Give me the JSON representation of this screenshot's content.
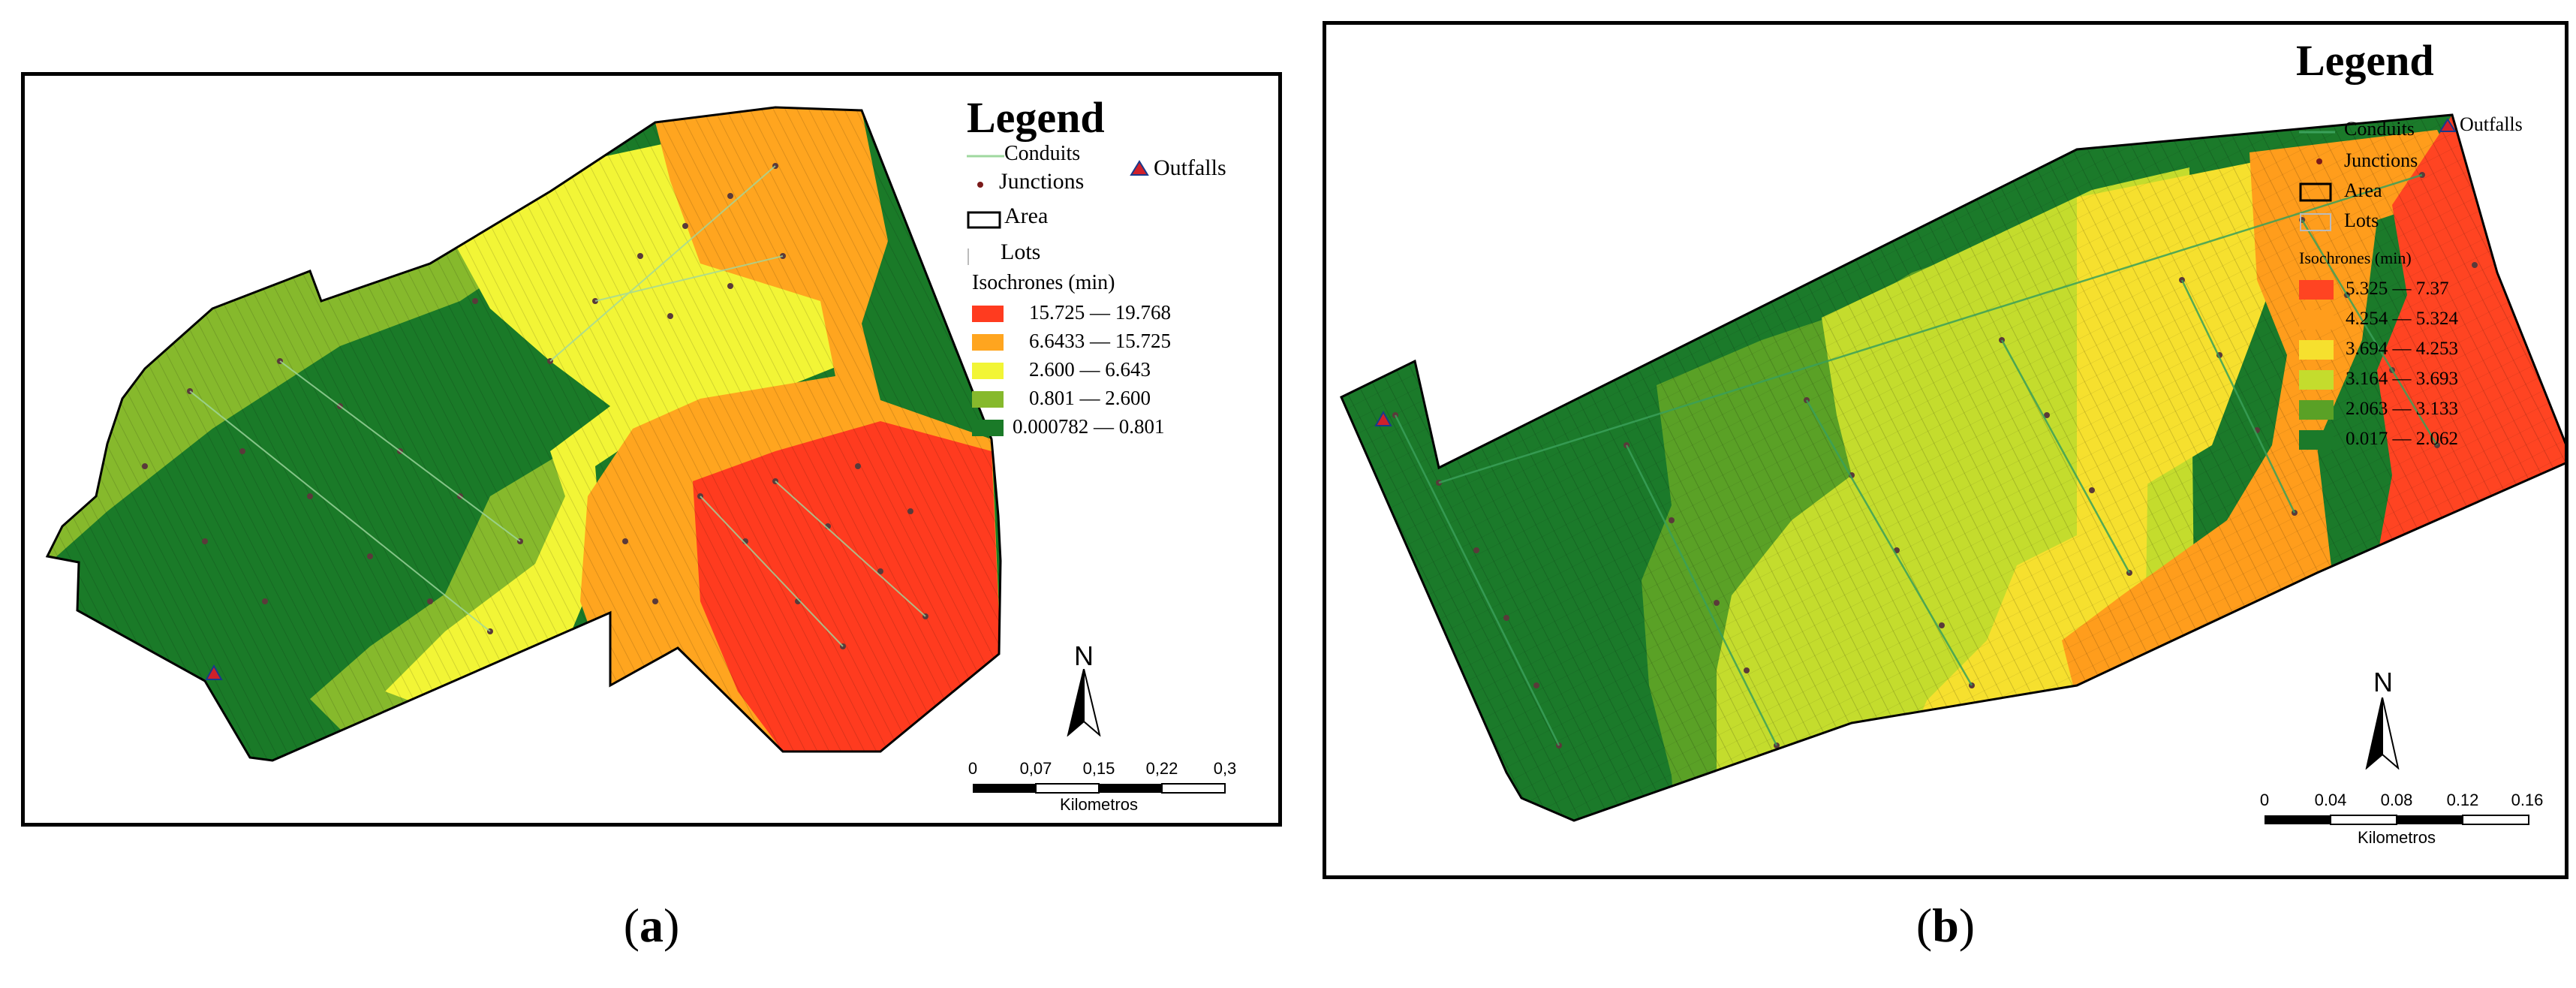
{
  "panel_a": {
    "legend": {
      "title": "Legend",
      "conduits": "Conduits",
      "outfalls": "Outfalls",
      "junctions": "Junctions",
      "area": "Area",
      "lots": "Lots",
      "isochrones_title": "Isochrones (min)",
      "classes": [
        {
          "label": "15.725 — 19.768",
          "color": "#ff3b1f"
        },
        {
          "label": "6.6433 — 15.725",
          "color": "#ffa51f"
        },
        {
          "label": "2.600 — 6.643",
          "color": "#f2f536"
        },
        {
          "label": "0.801 — 2.600",
          "color": "#86b92c"
        },
        {
          "label": "0.000782 — 0.801",
          "color": "#1a7a28"
        }
      ]
    },
    "north": "N",
    "scale": {
      "ticks": [
        "0",
        "0,07",
        "0,15",
        "0,22",
        "0,3"
      ],
      "unit": "Kilometros"
    },
    "caption_open": "(",
    "caption_letter": "a",
    "caption_close": ")"
  },
  "panel_b": {
    "legend": {
      "title": "Legend",
      "conduits": "Conduits",
      "outfalls": "Outfalls",
      "junctions": "Junctions",
      "area": "Area",
      "lots": "Lots",
      "isochrones_title": "Isochrones (min)",
      "classes": [
        {
          "label": "5.325 — 7.37",
          "color": "#ff4422"
        },
        {
          "label": "4.254 — 5.324",
          "color": "#ff9d1c"
        },
        {
          "label": "3.694 — 4.253",
          "color": "#f6e02e"
        },
        {
          "label": "3.164 — 3.693",
          "color": "#c4dc2d"
        },
        {
          "label": "2.063 — 3.133",
          "color": "#5aa126"
        },
        {
          "label": "0.017 — 2.062",
          "color": "#1b7a2a"
        }
      ]
    },
    "north": "N",
    "scale": {
      "ticks": [
        "0",
        "0.04",
        "0.08",
        "0.12",
        "0.16"
      ],
      "unit": "Kilometros"
    },
    "caption_open": "(",
    "caption_letter": "b",
    "caption_close": ")"
  }
}
